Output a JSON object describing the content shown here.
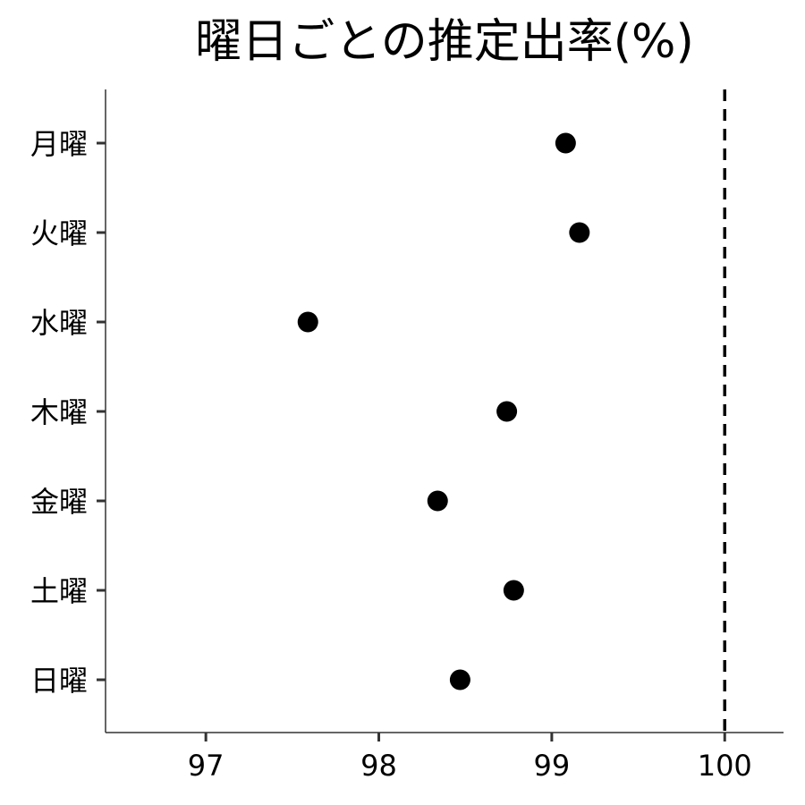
{
  "chart_data": {
    "type": "scatter",
    "title": "曜日ごとの推定出率(%)",
    "xlabel": "",
    "ylabel": "",
    "categories": [
      "月曜",
      "火曜",
      "水曜",
      "木曜",
      "金曜",
      "土曜",
      "日曜"
    ],
    "values": [
      99.08,
      99.16,
      97.59,
      98.74,
      98.34,
      98.78,
      98.47
    ],
    "xlim": [
      96.42,
      100.34
    ],
    "xticks": [
      97,
      98,
      99,
      100
    ],
    "reference_line": {
      "x": 100,
      "style": "dashed"
    },
    "grid": false,
    "legend": "none",
    "colors": {
      "points": "#000000",
      "axis": "#333333",
      "reference": "#000000"
    }
  }
}
